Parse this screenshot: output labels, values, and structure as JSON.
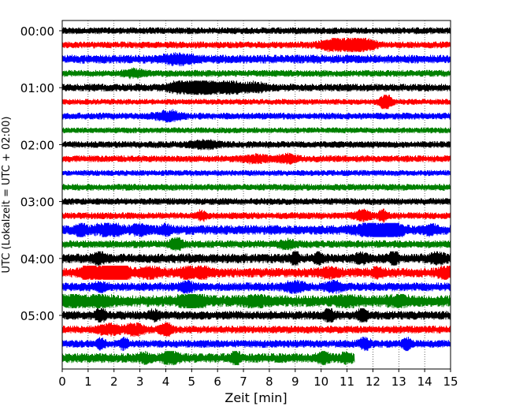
{
  "chart_data": {
    "type": "line",
    "title": "",
    "xlabel": "Zeit  [min]",
    "ylabel": "UTC (Lokalzeit = UTC + 02:00)",
    "xlim": [
      0,
      15
    ],
    "x_ticks": [
      "0",
      "1",
      "2",
      "3",
      "4",
      "5",
      "6",
      "7",
      "8",
      "9",
      "10",
      "11",
      "12",
      "13",
      "14",
      "15"
    ],
    "y_tick_labels": [
      "00:00",
      "01:00",
      "02:00",
      "03:00",
      "04:00",
      "05:00"
    ],
    "grid": "vertical dotted",
    "rows_per_hour": 4,
    "trace_colors": [
      "#000000",
      "#ff0000",
      "#0000ff",
      "#008000"
    ],
    "traces": [
      {
        "bursts": [],
        "base_amp": 0.35
      },
      {
        "bursts": [
          [
            10.5,
            0.35,
            0.8
          ],
          [
            11.3,
            0.3,
            1.0
          ],
          [
            11.9,
            0.2,
            0.5
          ]
        ],
        "base_amp": 0.35
      },
      {
        "bursts": [
          [
            4.5,
            0.4,
            0.6
          ]
        ],
        "base_amp": 0.45
      },
      {
        "bursts": [
          [
            2.8,
            0.3,
            0.4
          ]
        ],
        "base_amp": 0.35
      },
      {
        "bursts": [
          [
            4.5,
            0.3,
            0.6
          ],
          [
            5.4,
            0.35,
            1.2
          ],
          [
            6.5,
            0.4,
            0.7
          ],
          [
            7.5,
            0.3,
            0.5
          ]
        ],
        "base_amp": 0.4
      },
      {
        "bursts": [
          [
            12.5,
            0.15,
            1.2
          ]
        ],
        "base_amp": 0.3
      },
      {
        "bursts": [
          [
            4.1,
            0.35,
            0.6
          ]
        ],
        "base_amp": 0.35
      },
      {
        "bursts": [],
        "base_amp": 0.3
      },
      {
        "bursts": [
          [
            5.5,
            0.4,
            0.45
          ]
        ],
        "base_amp": 0.35
      },
      {
        "bursts": [
          [
            7.5,
            0.4,
            0.4
          ],
          [
            8.7,
            0.25,
            0.5
          ]
        ],
        "base_amp": 0.35
      },
      {
        "bursts": [],
        "base_amp": 0.3
      },
      {
        "bursts": [],
        "base_amp": 0.35
      },
      {
        "bursts": [],
        "base_amp": 0.35
      },
      {
        "bursts": [
          [
            5.4,
            0.12,
            0.6
          ],
          [
            11.6,
            0.25,
            0.6
          ],
          [
            12.4,
            0.12,
            0.7
          ]
        ],
        "base_amp": 0.35
      },
      {
        "bursts": [
          [
            0.7,
            0.12,
            1.0
          ],
          [
            1.8,
            0.35,
            0.7
          ],
          [
            3.0,
            0.2,
            0.6
          ],
          [
            4.0,
            0.15,
            0.5
          ],
          [
            12.0,
            0.4,
            1.1
          ],
          [
            12.8,
            0.25,
            1.0
          ],
          [
            14.2,
            0.2,
            0.5
          ]
        ],
        "base_amp": 0.5
      },
      {
        "bursts": [
          [
            4.4,
            0.15,
            0.8
          ],
          [
            8.7,
            0.25,
            0.4
          ]
        ],
        "base_amp": 0.4
      },
      {
        "bursts": [
          [
            1.4,
            0.15,
            0.8
          ],
          [
            9.0,
            0.1,
            0.9
          ],
          [
            9.9,
            0.1,
            0.8
          ],
          [
            11.5,
            0.15,
            0.6
          ],
          [
            12.8,
            0.1,
            1.1
          ],
          [
            14.5,
            0.2,
            0.6
          ]
        ],
        "base_amp": 0.5
      },
      {
        "bursts": [
          [
            1.0,
            0.2,
            1.0
          ],
          [
            1.8,
            0.3,
            1.4
          ],
          [
            2.3,
            0.2,
            1.1
          ],
          [
            3.4,
            0.35,
            0.5
          ],
          [
            4.8,
            0.2,
            0.7
          ],
          [
            5.4,
            0.15,
            0.9
          ],
          [
            10.3,
            0.25,
            0.5
          ],
          [
            12.2,
            0.15,
            0.5
          ],
          [
            14.8,
            0.2,
            0.6
          ]
        ],
        "base_amp": 0.5
      },
      {
        "bursts": [
          [
            1.5,
            0.2,
            0.4
          ],
          [
            4.8,
            0.2,
            0.5
          ],
          [
            9.0,
            0.25,
            0.6
          ],
          [
            10.5,
            0.2,
            0.6
          ]
        ],
        "base_amp": 0.45
      },
      {
        "bursts": [
          [
            0.4,
            0.3,
            0.7
          ],
          [
            1.5,
            0.3,
            0.6
          ],
          [
            5.0,
            0.3,
            1.0
          ],
          [
            7.5,
            0.3,
            0.5
          ],
          [
            11.0,
            0.3,
            0.5
          ],
          [
            13.0,
            0.3,
            0.5
          ]
        ],
        "base_amp": 0.6
      },
      {
        "bursts": [
          [
            1.5,
            0.12,
            0.9
          ],
          [
            3.6,
            0.15,
            0.6
          ],
          [
            10.3,
            0.12,
            1.0
          ],
          [
            11.6,
            0.12,
            0.9
          ]
        ],
        "base_amp": 0.45
      },
      {
        "bursts": [
          [
            1.8,
            0.3,
            0.6
          ],
          [
            2.8,
            0.25,
            0.7
          ],
          [
            4.0,
            0.15,
            1.0
          ]
        ],
        "base_amp": 0.4
      },
      {
        "bursts": [
          [
            1.5,
            0.1,
            0.6
          ],
          [
            2.4,
            0.1,
            0.8
          ],
          [
            11.7,
            0.15,
            0.7
          ],
          [
            13.3,
            0.12,
            0.8
          ]
        ],
        "base_amp": 0.4
      },
      {
        "bursts": [
          [
            3.2,
            0.15,
            0.5
          ],
          [
            4.2,
            0.2,
            0.8
          ],
          [
            6.7,
            0.1,
            1.2
          ],
          [
            10.1,
            0.15,
            0.8
          ],
          [
            11.0,
            0.15,
            0.5
          ]
        ],
        "base_amp": 0.5,
        "end": 11.3
      }
    ]
  }
}
